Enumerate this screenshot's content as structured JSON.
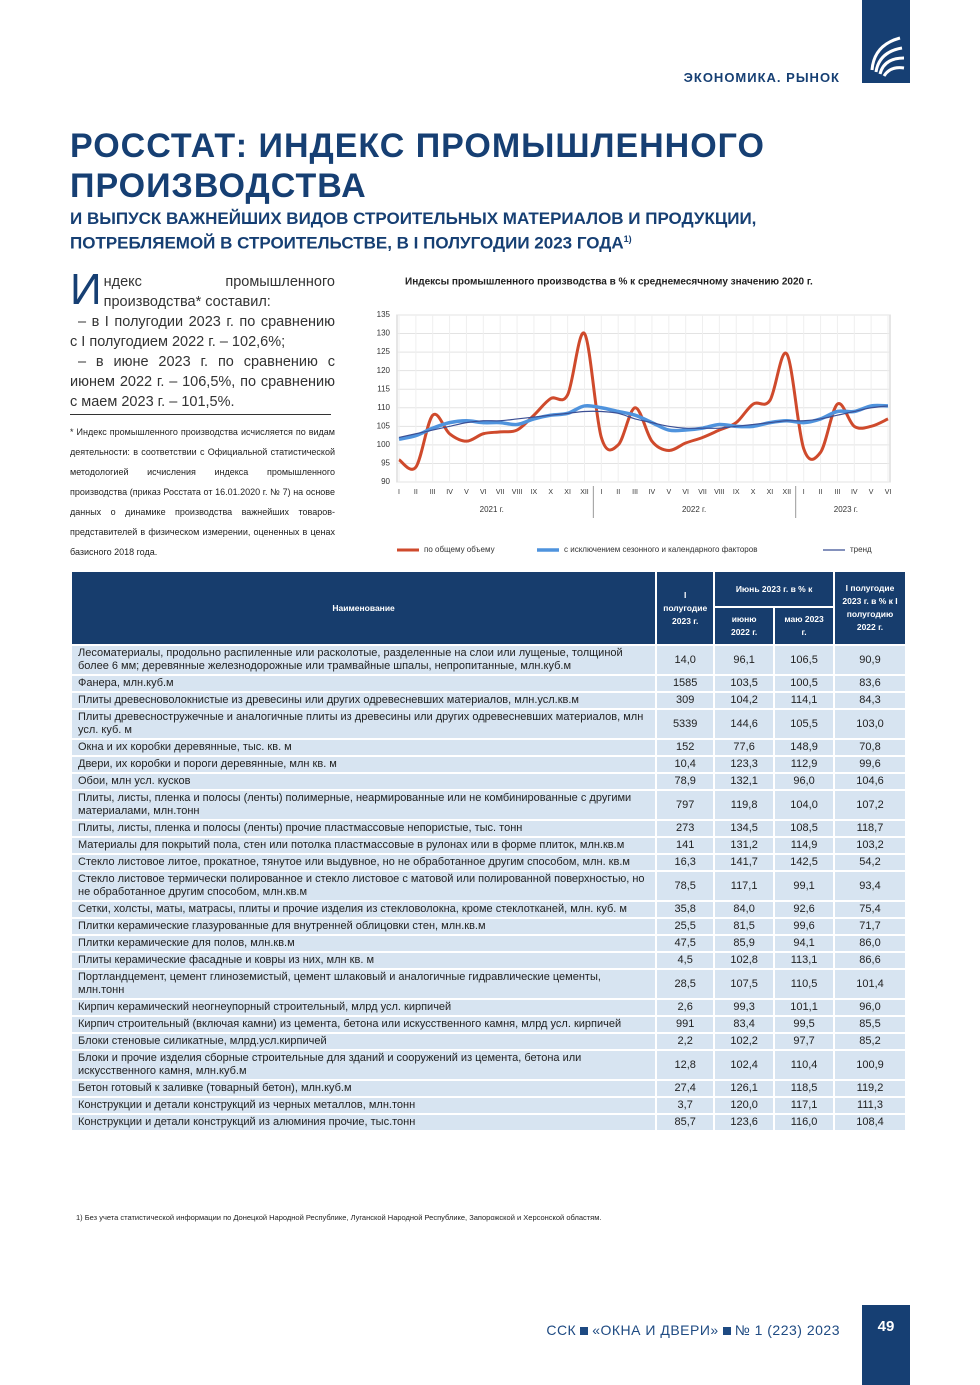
{
  "header": {
    "section": "ЭКОНОМИКА. РЫНОК"
  },
  "article": {
    "title": "РОССТАТ: ИНДЕКС ПРОМЫШЛЕННОГО ПРОИЗВОДСТВА",
    "subtitle": "И ВЫПУСК ВАЖНЕЙШИХ ВИДОВ СТРОИТЕЛЬНЫХ МАТЕРИАЛОВ И ПРОДУКЦИИ, ПОТРЕБЛЯЕМОЙ В СТРОИТЕЛЬСТВЕ, В I ПОЛУГОДИИ 2023 ГОДА",
    "subtitle_note": "1)",
    "paragraphs": [
      "Индекс промышленного производства* составил:",
      "– в I полугодии 2023 г. по сравнению с I полугодием 2022 г. – 102,6%;",
      "– в июне 2023 г. по сравнению с июнем 2022 г. – 106,5%, по сравнению с маем 2023 г. – 101,5%."
    ],
    "footnote": "* Индекс промышленного производства исчисляется по видам деятельности: в соответствии с Официальной статистической методологией исчисления индекса промышленного производства (приказ Росстата от 16.01.2020 г. № 7) на основе данных о динамике производства важнейших товаров-представителей в физическом измерении, оцененных в ценах базисного 2018 года."
  },
  "chart_data": {
    "type": "line",
    "title": "Индексы промышленного производства в % к среднемесячному значению 2020 г.",
    "categories": [
      "I",
      "II",
      "III",
      "IV",
      "V",
      "VI",
      "VII",
      "VIII",
      "IX",
      "X",
      "XI",
      "XII",
      "I",
      "II",
      "III",
      "IV",
      "V",
      "VI",
      "VII",
      "VIII",
      "IX",
      "X",
      "XI",
      "XII",
      "I",
      "II",
      "III",
      "IV",
      "V",
      "VI"
    ],
    "year_labels": [
      "2021 г.",
      "2022 г.",
      "2023 г."
    ],
    "ylim": [
      90,
      135
    ],
    "yticks": [
      90,
      95,
      100,
      105,
      110,
      115,
      120,
      125,
      130,
      135
    ],
    "grid": true,
    "series": [
      {
        "name": "по общему объему",
        "color": "#cf4a2c",
        "values": [
          96,
          94,
          108,
          103,
          101,
          103,
          103.5,
          104,
          108,
          112.5,
          113.5,
          130,
          102,
          100,
          110,
          101,
          98.5,
          100.5,
          102,
          104,
          106,
          111,
          112,
          124.5,
          99,
          98,
          111,
          105,
          105,
          107
        ]
      },
      {
        "name": "с исключением сезонного и календарного факторов",
        "color": "#4f93dd",
        "values": [
          101.5,
          102.5,
          104.5,
          106,
          106.5,
          106,
          106,
          105.5,
          107,
          108,
          108.5,
          110.5,
          110,
          109,
          108,
          106,
          104,
          104,
          104.5,
          105.5,
          105,
          105,
          106,
          106.5,
          106,
          107,
          109,
          109,
          110.5,
          110.5
        ]
      },
      {
        "name": "тренд",
        "color": "#3b4f94",
        "values": [
          102,
          103,
          104,
          105,
          106,
          106.5,
          106.5,
          107,
          107.5,
          108,
          108.5,
          109,
          109,
          108.5,
          107,
          106,
          105,
          104.5,
          104.5,
          104.5,
          105,
          105.5,
          106,
          106.5,
          106.5,
          107,
          108,
          109,
          110,
          110.5
        ]
      }
    ]
  },
  "table": {
    "headers": {
      "name": "Наименование",
      "h1": "I полугодие 2023 г.",
      "june": "Июнь 2023 г. в % к",
      "june_prev": "июню 2022 г.",
      "may": "маю 2023 г.",
      "h1_pct": "I полугодие 2023 г. в % к I полугодию 2022 г."
    },
    "rows": [
      [
        "Лесоматериалы, продольно распиленные или расколотые, разделенные на слои или лущеные, толщиной более 6 мм; деревянные железнодорожные или трамвайные шпалы, непропитанные, млн.куб.м",
        "14,0",
        "96,1",
        "106,5",
        "90,9"
      ],
      [
        "Фанера, млн.куб.м",
        "1585",
        "103,5",
        "100,5",
        "83,6"
      ],
      [
        "Плиты древесноволокнистые из древесины или других одревесневших материалов, млн.усл.кв.м",
        "309",
        "104,2",
        "114,1",
        "84,3"
      ],
      [
        "Плиты древесностружечные и аналогичные плиты из древесины или других одревесневших материалов, млн усл. куб. м",
        "5339",
        "144,6",
        "105,5",
        "103,0"
      ],
      [
        "Окна и их коробки деревянные, тыс. кв. м",
        "152",
        "77,6",
        "148,9",
        "70,8"
      ],
      [
        "Двери, их коробки и пороги деревянные, млн кв. м",
        "10,4",
        "123,3",
        "112,9",
        "99,6"
      ],
      [
        "Обои, млн усл. кусков",
        "78,9",
        "132,1",
        "96,0",
        "104,6"
      ],
      [
        "Плиты, листы, пленка и полосы (ленты) полимерные, неармированные или не комбинированные с другими материалами, млн.тонн",
        "797",
        "119,8",
        "104,0",
        "107,2"
      ],
      [
        "Плиты, листы, пленка и полосы (ленты) прочие пластмассовые непористые, тыс. тонн",
        "273",
        "134,5",
        "108,5",
        "118,7"
      ],
      [
        "Материалы для покрытий пола, стен или потолка пластмассовые в рулонах или в форме плиток, млн.кв.м",
        "141",
        "131,2",
        "114,9",
        "103,2"
      ],
      [
        "Стекло листовое литое, прокатное, тянутое или выдувное, но не обработанное другим способом, млн. кв.м",
        "16,3",
        "141,7",
        "142,5",
        "54,2"
      ],
      [
        "Стекло листовое термически полированное и стекло листовое с матовой или полированной поверхностью, но не обработанное другим способом, млн.кв.м",
        "78,5",
        "117,1",
        "99,1",
        "93,4"
      ],
      [
        "Сетки, холсты, маты, матрасы, плиты и прочие изделия из стекловолокна, кроме стеклотканей, млн. куб. м",
        "35,8",
        "84,0",
        "92,6",
        "75,4"
      ],
      [
        "Плитки керамические глазурованные для внутренней облицовки стен, млн.кв.м",
        "25,5",
        "81,5",
        "99,6",
        "71,7"
      ],
      [
        "Плитки керамические для полов, млн.кв.м",
        "47,5",
        "85,9",
        "94,1",
        "86,0"
      ],
      [
        "Плиты керамические фасадные и ковры из них, млн кв. м",
        "4,5",
        "102,8",
        "113,1",
        "86,6"
      ],
      [
        "Портландцемент, цемент глиноземистый, цемент шлаковый и аналогичные гидравлические цементы, млн.тонн",
        "28,5",
        "107,5",
        "110,5",
        "101,4"
      ],
      [
        "Кирпич керамический неогнеупорный строительный, млрд усл. кирпичей",
        "2,6",
        "99,3",
        "101,1",
        "96,0"
      ],
      [
        "Кирпич строительный (включая камни) из цемента, бетона или искусственного камня, млрд усл. кирпичей",
        "991",
        "83,4",
        "99,5",
        "85,5"
      ],
      [
        "Блоки стеновые силикатные, млрд.усл.кирпичей",
        "2,2",
        "102,2",
        "97,7",
        "85,2"
      ],
      [
        "Блоки и прочие изделия сборные строительные для зданий и сооружений из цемента, бетона или искусственного камня, млн.куб.м",
        "12,8",
        "102,4",
        "110,4",
        "100,9"
      ],
      [
        "Бетон готовый к заливке (товарный бетон), млн.куб.м",
        "27,4",
        "126,1",
        "118,5",
        "119,2"
      ],
      [
        "Конструкции и детали конструкций из черных металлов, млн.тонн",
        "3,7",
        "120,0",
        "117,1",
        "111,3"
      ],
      [
        "Конструкции и детали конструкций из алюминия прочие, тыс.тонн",
        "85,7",
        "123,6",
        "116,0",
        "108,4"
      ]
    ],
    "footnote": "1) Без учета статистической информации по Донецкой Народной Республике, Луганской Народной Республике, Запорожской и Херсонской областям."
  },
  "footer": {
    "publisher": "ССК",
    "magazine": "«ОКНА И ДВЕРИ»",
    "issue": "№ 1 (223) 2023",
    "page": "49"
  }
}
